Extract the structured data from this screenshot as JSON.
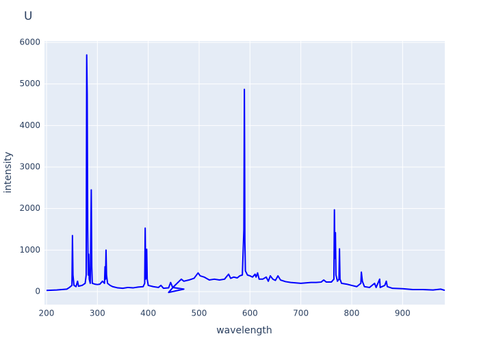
{
  "chart_data": {
    "type": "line",
    "title": "U",
    "x_label": "wavelength",
    "y_label": "intensity",
    "x": [
      200,
      220,
      240,
      245,
      250,
      251,
      252,
      254,
      258,
      261,
      263,
      270,
      276,
      278,
      279,
      280,
      281,
      282,
      283,
      284,
      286,
      288,
      289,
      290,
      295,
      300,
      305,
      310,
      314,
      315,
      316,
      317,
      318,
      320,
      325,
      330,
      340,
      350,
      360,
      370,
      380,
      390,
      393,
      394,
      395,
      396,
      397,
      398,
      400,
      410,
      420,
      425,
      430,
      440,
      444,
      448,
      470,
      440,
      450,
      465,
      470,
      480,
      490,
      498,
      502,
      510,
      520,
      530,
      540,
      550,
      558,
      562,
      568,
      575,
      580,
      585,
      588,
      589,
      589.5,
      590,
      591,
      595,
      600,
      605,
      610,
      612,
      615,
      618,
      625,
      632,
      636,
      640,
      645,
      650,
      655,
      660,
      670,
      680,
      690,
      700,
      710,
      720,
      730,
      740,
      745,
      750,
      760,
      765,
      766,
      767,
      768,
      769,
      772,
      775,
      776,
      777,
      780,
      790,
      800,
      810,
      818,
      819,
      821,
      825,
      835,
      845,
      848,
      855,
      856,
      865,
      868,
      870,
      880,
      900,
      920,
      940,
      960,
      975,
      983
    ],
    "series": [
      {
        "name": "U",
        "color": "#0000ff",
        "values": [
          30,
          40,
          60,
          100,
          150,
          1350,
          400,
          150,
          120,
          250,
          130,
          150,
          200,
          400,
          5700,
          4750,
          1500,
          400,
          900,
          300,
          200,
          2450,
          600,
          200,
          180,
          170,
          180,
          250,
          200,
          600,
          300,
          1000,
          400,
          200,
          150,
          120,
          90,
          80,
          100,
          90,
          110,
          120,
          200,
          1530,
          300,
          400,
          1020,
          300,
          150,
          120,
          100,
          150,
          80,
          90,
          220,
          100,
          60,
          -20,
          120,
          300,
          250,
          280,
          320,
          450,
          380,
          350,
          280,
          300,
          280,
          300,
          420,
          320,
          350,
          330,
          380,
          400,
          1500,
          4870,
          3400,
          1200,
          500,
          400,
          380,
          350,
          420,
          350,
          450,
          300,
          300,
          350,
          250,
          380,
          300,
          270,
          380,
          280,
          240,
          220,
          210,
          200,
          210,
          220,
          220,
          230,
          280,
          230,
          230,
          300,
          1970,
          800,
          1420,
          400,
          250,
          300,
          1030,
          300,
          200,
          180,
          150,
          120,
          200,
          470,
          250,
          120,
          100,
          200,
          100,
          300,
          100,
          150,
          250,
          120,
          80,
          70,
          50,
          50,
          40,
          60,
          30
        ]
      }
    ],
    "xlim": [
      196,
      983
    ],
    "ylim": [
      -313,
      6033
    ],
    "xticks": [
      200,
      300,
      400,
      500,
      600,
      700,
      800,
      900
    ],
    "yticks": [
      0,
      1000,
      2000,
      3000,
      4000,
      5000,
      6000
    ],
    "grid": true
  }
}
